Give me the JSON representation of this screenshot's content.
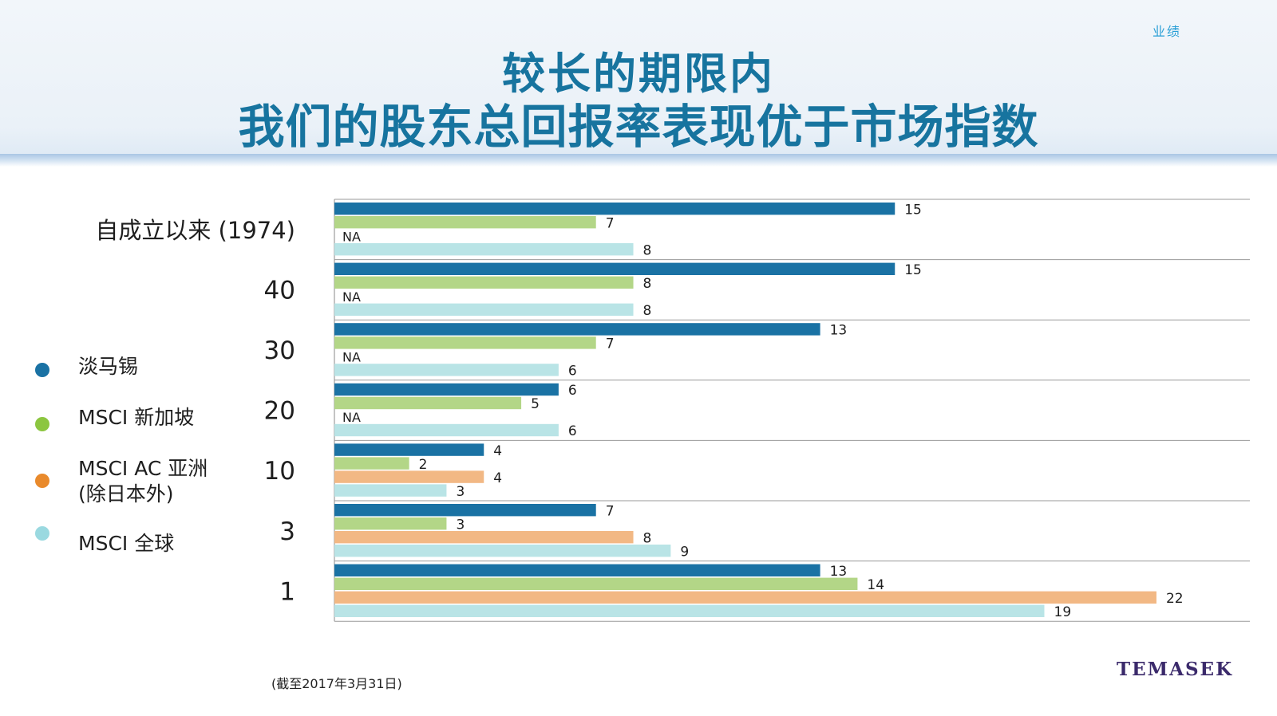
{
  "header": {
    "section_tag": "业绩",
    "title_line1": "较长的期限内",
    "title_line2": "我们的股东总回报率表现优于市场指数"
  },
  "chart_data": {
    "type": "bar",
    "orientation": "horizontal",
    "categories": [
      "自成立以来 (1974)",
      "40",
      "30",
      "20",
      "10",
      "3",
      "1"
    ],
    "series": [
      {
        "name": "淡马锡",
        "color": "#1a72a4",
        "values": [
          15,
          15,
          13,
          6,
          4,
          7,
          13
        ]
      },
      {
        "name": "MSCI 新加坡",
        "color": "#b3d687",
        "values": [
          7,
          8,
          7,
          5,
          2,
          3,
          14
        ]
      },
      {
        "name": "MSCI AC 亚洲\n(除日本外)",
        "color": "#f2b884",
        "values": [
          null,
          null,
          null,
          null,
          4,
          8,
          22
        ]
      },
      {
        "name": "MSCI 全球",
        "color": "#b9e4e6",
        "values": [
          8,
          8,
          6,
          6,
          3,
          9,
          19
        ]
      }
    ],
    "missing_label": "NA",
    "xlim": [
      0,
      24.5
    ],
    "grid": false,
    "legend_position": "left"
  },
  "legend": {
    "items": [
      {
        "label": "淡马锡",
        "color": "#1a72a4"
      },
      {
        "label": "MSCI 新加坡",
        "color": "#8cc640"
      },
      {
        "label": "MSCI AC 亚洲\n(除日本外)",
        "color": "#e98a2c"
      },
      {
        "label": "MSCI 全球",
        "color": "#9ad9e0"
      }
    ]
  },
  "footnote": "(截至2017年3月31日)",
  "logo": "TEMASEK"
}
